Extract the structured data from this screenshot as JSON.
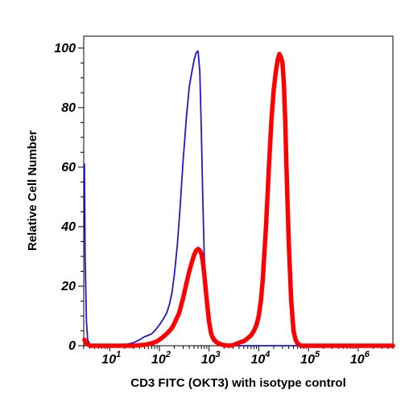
{
  "chart_data": {
    "type": "line",
    "title": "",
    "xlabel": "CD3 FITC (OKT3) with isotype control",
    "ylabel": "Relative Cell Number",
    "x_scale": "log",
    "xlim": [
      3,
      5000000
    ],
    "ylim": [
      0,
      104
    ],
    "x_tick_labels": [
      {
        "base": "10",
        "exp": "1",
        "value": 10
      },
      {
        "base": "10",
        "exp": "2",
        "value": 100
      },
      {
        "base": "10",
        "exp": "3",
        "value": 1000
      },
      {
        "base": "10",
        "exp": "4",
        "value": 10000
      },
      {
        "base": "10",
        "exp": "5",
        "value": 100000
      },
      {
        "base": "10",
        "exp": "6",
        "value": 1000000
      }
    ],
    "y_ticks": [
      0,
      20,
      40,
      60,
      80,
      100
    ],
    "grid": false,
    "legend": "none",
    "series": [
      {
        "color": "#1a1acc",
        "x": [
          3.1,
          3.2,
          3.4,
          3.6,
          4,
          5,
          7,
          10,
          15,
          20,
          30,
          40,
          50,
          60,
          70,
          80,
          90,
          100,
          120,
          140,
          160,
          180,
          200,
          230,
          260,
          300,
          350,
          400,
          450,
          500,
          550,
          600,
          650,
          700,
          750,
          800,
          900,
          1000,
          1100,
          1200,
          1400,
          1700,
          2000,
          3000,
          10000,
          100000,
          1000000,
          5000000
        ],
        "y": [
          61,
          30,
          8,
          2,
          0.5,
          0,
          0,
          0,
          0,
          0.3,
          1,
          2,
          3,
          3.5,
          4,
          5,
          6,
          7,
          9,
          11,
          14,
          18,
          24,
          34,
          46,
          62,
          77,
          87,
          92,
          96,
          98.5,
          99,
          92,
          72,
          48,
          30,
          14,
          6,
          3,
          1.5,
          0.8,
          0.3,
          0,
          0,
          0,
          0,
          0,
          0
        ]
      },
      {
        "color": "#ff0000",
        "x": [
          3.1,
          3.3,
          3.6,
          4,
          5,
          10,
          30,
          50,
          70,
          90,
          110,
          130,
          150,
          180,
          200,
          250,
          300,
          350,
          400,
          450,
          500,
          550,
          600,
          650,
          700,
          750,
          800,
          900,
          1000,
          1100,
          1200,
          1400,
          1700,
          2000,
          2500,
          3000,
          4000,
          5000,
          6000,
          7000,
          8000,
          9000,
          10000,
          11000,
          12000,
          14000,
          16000,
          18000,
          20000,
          22000,
          24000,
          26000,
          28000,
          30000,
          32000,
          34000,
          36000,
          40000,
          45000,
          50000,
          55000,
          60000,
          70000,
          100000,
          1000000,
          5000000
        ],
        "y": [
          2,
          1,
          0.5,
          0,
          0,
          0,
          0,
          0.3,
          0.8,
          1.5,
          2.5,
          3.5,
          4.5,
          6,
          7.5,
          11,
          16,
          21,
          25,
          28,
          30.5,
          32,
          32.5,
          32,
          31,
          28,
          24,
          15,
          8,
          4,
          2.5,
          1.2,
          0.5,
          0.2,
          0,
          0.2,
          1,
          1.5,
          2.5,
          3.5,
          5,
          7,
          10,
          15,
          22,
          40,
          60,
          76,
          86,
          92,
          96,
          98,
          97,
          95,
          88,
          76,
          60,
          35,
          15,
          5,
          2,
          0.8,
          0,
          0,
          0,
          0
        ]
      }
    ]
  }
}
